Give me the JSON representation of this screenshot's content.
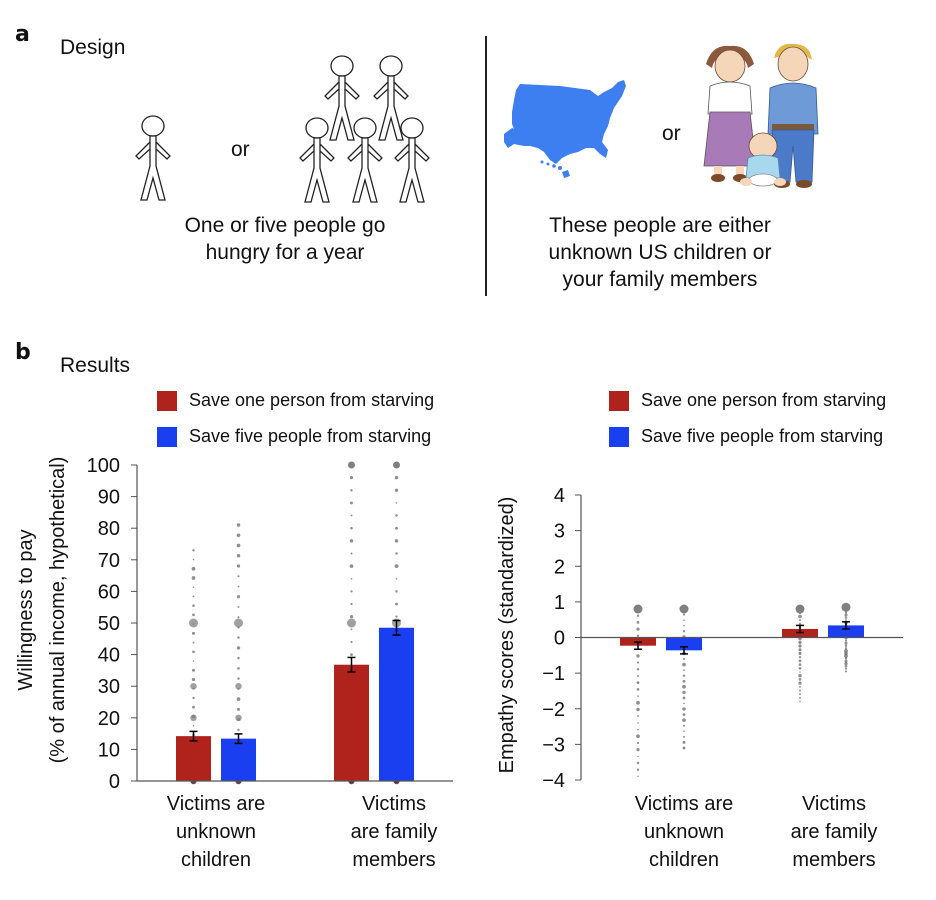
{
  "panel_a": {
    "letter": "a",
    "title": "Design",
    "left_caption": [
      "One or five people go",
      "hungry for a year"
    ],
    "right_caption": [
      "These people are either",
      "unknown US children or",
      "your family members"
    ],
    "or_label": "or",
    "icons": [
      "stick-figure-one",
      "stick-figures-five",
      "us-map",
      "family-cartoon"
    ]
  },
  "panel_b": {
    "letter": "b",
    "title": "Results"
  },
  "colors": {
    "one": "#b0231c",
    "five": "#1a3ff0",
    "dots": "#808080",
    "axis": "#222222"
  },
  "chart_data": [
    {
      "type": "bar",
      "title": "",
      "ylabel": [
        "Willingness to pay",
        "(% of annual income, hypothetical)"
      ],
      "xlabel": "",
      "ylim": [
        0,
        100
      ],
      "yticks": [
        0,
        10,
        20,
        30,
        40,
        50,
        60,
        70,
        80,
        90,
        100
      ],
      "grid": false,
      "legend_position": "top",
      "categories": [
        [
          "Victims are",
          "unknown",
          "children"
        ],
        [
          "Victims",
          "are family",
          "members"
        ]
      ],
      "series": [
        {
          "name": "Save one person from starving",
          "color": "#b0231c",
          "values": [
            14.2,
            36.8
          ],
          "error": [
            1.5,
            2.3
          ]
        },
        {
          "name": "Save five people from starving",
          "color": "#1a3ff0",
          "values": [
            13.4,
            48.5
          ],
          "error": [
            1.5,
            2.3
          ]
        }
      ],
      "individual_points_max": [
        [
          73,
          81
        ],
        [
          100,
          100
        ]
      ]
    },
    {
      "type": "bar",
      "title": "",
      "ylabel": [
        "Empathy scores (standardized)"
      ],
      "xlabel": "",
      "ylim": [
        -4,
        4
      ],
      "yticks": [
        -4,
        -3,
        -2,
        -1,
        0,
        1,
        2,
        3,
        4
      ],
      "ytick_labels": [
        "−4",
        "−3",
        "−2",
        "−1",
        "0",
        "1",
        "2",
        "3",
        "4"
      ],
      "grid": false,
      "legend_position": "top-right",
      "categories": [
        [
          "Victims are",
          "unknown",
          "children"
        ],
        [
          "Victims",
          "are family",
          "members"
        ]
      ],
      "series": [
        {
          "name": "Save one person from starving",
          "color": "#b0231c",
          "values": [
            -0.23,
            0.24
          ],
          "error": [
            0.1,
            0.1
          ]
        },
        {
          "name": "Save five people from starving",
          "color": "#1a3ff0",
          "values": [
            -0.36,
            0.34
          ],
          "error": [
            0.1,
            0.1
          ]
        }
      ],
      "individual_points_range": [
        [
          [
            -3.9,
            0.8
          ],
          [
            -3.1,
            0.8
          ]
        ],
        [
          [
            -1.8,
            0.8
          ],
          [
            -0.95,
            0.85
          ]
        ]
      ]
    }
  ]
}
